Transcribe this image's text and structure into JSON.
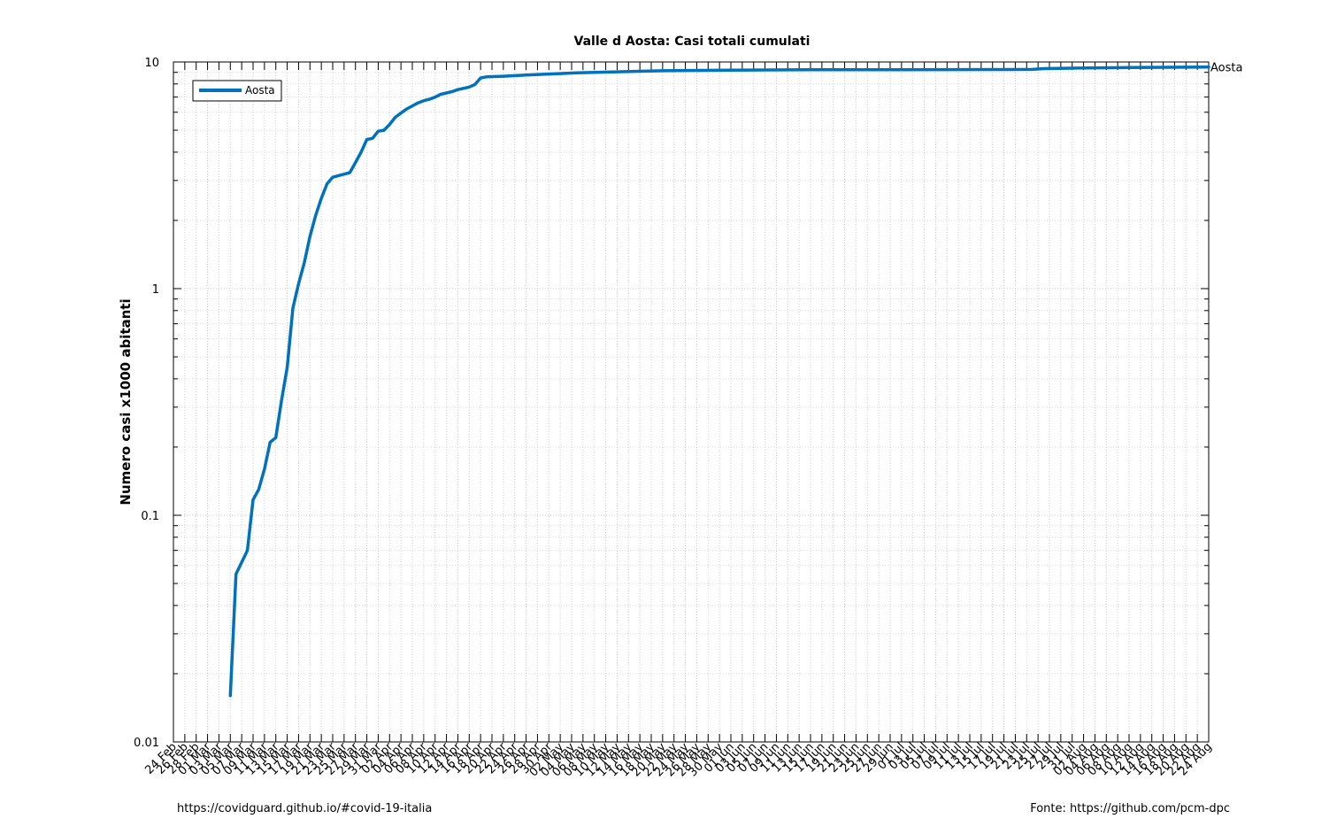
{
  "chart_data": {
    "type": "line",
    "title": "Valle d Aosta: Casi totali cumulati",
    "xlabel": "",
    "ylabel": "Numero casi x1000 abitanti",
    "yscale": "log",
    "ylim": [
      0.01,
      10
    ],
    "yticks": [
      "0.01",
      "0.1",
      "1",
      "10"
    ],
    "xlim": [
      "2020-02-24",
      "2020-08-24"
    ],
    "xtick_labels": [
      "24 Feb",
      "26 Feb",
      "28 Feb",
      "01 Mar",
      "03 Mar",
      "05 Mar",
      "07 Mar",
      "09 Mar",
      "11 Mar",
      "13 Mar",
      "15 Mar",
      "17 Mar",
      "19 Mar",
      "21 Mar",
      "23 Mar",
      "25 Mar",
      "27 Mar",
      "29 Mar",
      "31 Mar",
      "02 Apr",
      "04 Apr",
      "06 Apr",
      "08 Apr",
      "10 Apr",
      "12 Apr",
      "14 Apr",
      "16 Apr",
      "18 Apr",
      "20 Apr",
      "22 Apr",
      "24 Apr",
      "26 Apr",
      "28 Apr",
      "30 Apr",
      "02 May",
      "04 May",
      "06 May",
      "08 May",
      "10 May",
      "12 May",
      "14 May",
      "16 May",
      "18 May",
      "20 May",
      "22 May",
      "24 May",
      "26 May",
      "28 May",
      "30 May",
      "01 Jun",
      "03 Jun",
      "05 Jun",
      "07 Jun",
      "09 Jun",
      "11 Jun",
      "13 Jun",
      "15 Jun",
      "17 Jun",
      "19 Jun",
      "21 Jun",
      "23 Jun",
      "25 Jun",
      "27 Jun",
      "29 Jun",
      "01 Jul",
      "03 Jul",
      "05 Jul",
      "07 Jul",
      "09 Jul",
      "11 Jul",
      "13 Jul",
      "15 Jul",
      "17 Jul",
      "19 Jul",
      "21 Jul",
      "23 Jul",
      "25 Jul",
      "27 Jul",
      "29 Jul",
      "31 Jul",
      "02 Aug",
      "04 Aug",
      "06 Aug",
      "08 Aug",
      "10 Aug",
      "12 Aug",
      "14 Aug",
      "16 Aug",
      "18 Aug",
      "20 Aug",
      "22 Aug",
      "24 Aug"
    ],
    "grid": true,
    "legend": {
      "position": "top-left",
      "entries": [
        "Aosta"
      ]
    },
    "series": [
      {
        "name": "Aosta",
        "color": "#0072bd",
        "end_label": "Aosta",
        "points": [
          [
            "2020-03-05",
            0.016
          ],
          [
            "2020-03-06",
            0.055
          ],
          [
            "2020-03-08",
            0.07
          ],
          [
            "2020-03-09",
            0.117
          ],
          [
            "2020-03-10",
            0.13
          ],
          [
            "2020-03-11",
            0.16
          ],
          [
            "2020-03-12",
            0.21
          ],
          [
            "2020-03-13",
            0.22
          ],
          [
            "2020-03-14",
            0.32
          ],
          [
            "2020-03-15",
            0.45
          ],
          [
            "2020-03-16",
            0.82
          ],
          [
            "2020-03-17",
            1.05
          ],
          [
            "2020-03-18",
            1.3
          ],
          [
            "2020-03-19",
            1.7
          ],
          [
            "2020-03-20",
            2.1
          ],
          [
            "2020-03-21",
            2.5
          ],
          [
            "2020-03-22",
            2.9
          ],
          [
            "2020-03-23",
            3.1
          ],
          [
            "2020-03-24",
            3.15
          ],
          [
            "2020-03-25",
            3.2
          ],
          [
            "2020-03-26",
            3.25
          ],
          [
            "2020-03-27",
            3.6
          ],
          [
            "2020-03-28",
            4.0
          ],
          [
            "2020-03-29",
            4.55
          ],
          [
            "2020-03-30",
            4.6
          ],
          [
            "2020-03-31",
            4.95
          ],
          [
            "2020-04-01",
            5.0
          ],
          [
            "2020-04-02",
            5.3
          ],
          [
            "2020-04-03",
            5.7
          ],
          [
            "2020-04-04",
            5.95
          ],
          [
            "2020-04-05",
            6.2
          ],
          [
            "2020-04-06",
            6.4
          ],
          [
            "2020-04-07",
            6.6
          ],
          [
            "2020-04-08",
            6.75
          ],
          [
            "2020-04-09",
            6.85
          ],
          [
            "2020-04-10",
            7.0
          ],
          [
            "2020-04-11",
            7.2
          ],
          [
            "2020-04-12",
            7.3
          ],
          [
            "2020-04-13",
            7.4
          ],
          [
            "2020-04-14",
            7.55
          ],
          [
            "2020-04-15",
            7.65
          ],
          [
            "2020-04-16",
            7.75
          ],
          [
            "2020-04-17",
            7.95
          ],
          [
            "2020-04-18",
            8.5
          ],
          [
            "2020-04-19",
            8.6
          ],
          [
            "2020-04-22",
            8.65
          ],
          [
            "2020-04-26",
            8.75
          ],
          [
            "2020-04-30",
            8.85
          ],
          [
            "2020-05-05",
            8.95
          ],
          [
            "2020-05-12",
            9.05
          ],
          [
            "2020-05-20",
            9.15
          ],
          [
            "2020-06-01",
            9.2
          ],
          [
            "2020-06-15",
            9.25
          ],
          [
            "2020-07-01",
            9.25
          ],
          [
            "2020-07-24",
            9.27
          ],
          [
            "2020-07-26",
            9.35
          ],
          [
            "2020-08-01",
            9.4
          ],
          [
            "2020-08-10",
            9.45
          ],
          [
            "2020-08-24",
            9.5
          ]
        ]
      }
    ]
  },
  "footer": {
    "left": "https://covidguard.github.io/#covid-19-italia",
    "right": "Fonte: https://github.com/pcm-dpc"
  }
}
